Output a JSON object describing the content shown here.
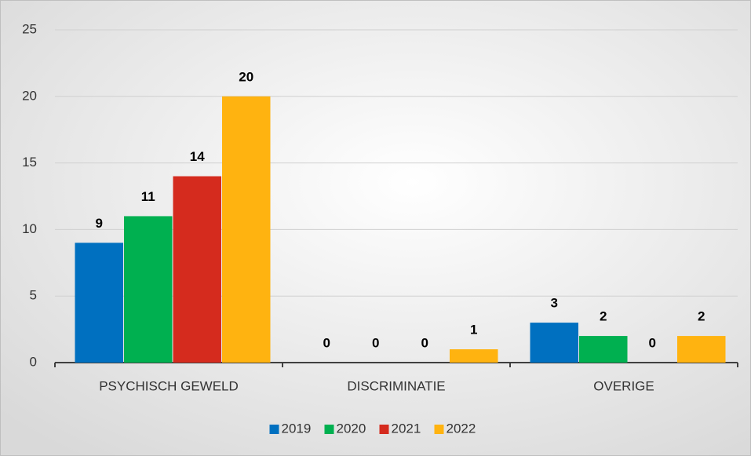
{
  "chart_data": {
    "type": "bar",
    "categories": [
      "PSYCHISCH GEWELD",
      "DISCRIMINATIE",
      "OVERIGE"
    ],
    "series": [
      {
        "name": "2019",
        "color": "#0070c0",
        "values": [
          9,
          0,
          3
        ]
      },
      {
        "name": "2020",
        "color": "#00b050",
        "values": [
          11,
          0,
          2
        ]
      },
      {
        "name": "2021",
        "color": "#d52b1e",
        "values": [
          14,
          0,
          0
        ]
      },
      {
        "name": "2022",
        "color": "#ffb310",
        "values": [
          20,
          1,
          2
        ]
      }
    ],
    "ylim": [
      0,
      25
    ],
    "yticks": [
      0,
      5,
      10,
      15,
      20,
      25
    ],
    "grid": true,
    "legend": "bottom"
  }
}
